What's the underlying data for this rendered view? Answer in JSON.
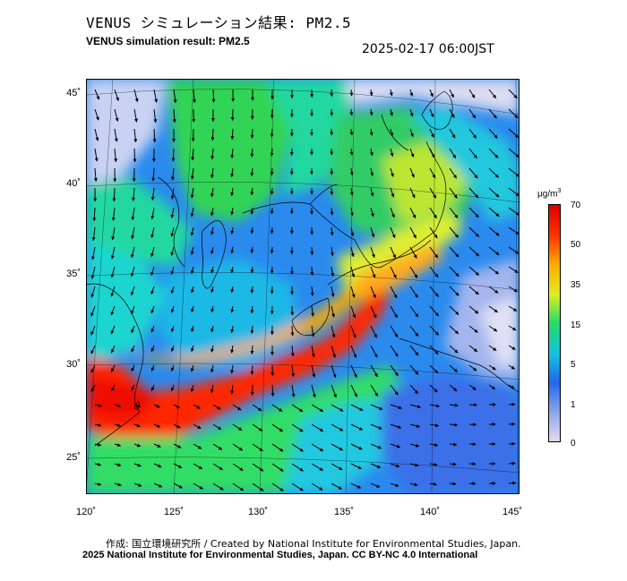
{
  "title_jp": "VENUS シミュレーション結果: PM2.5",
  "title_en": "VENUS simulation result: PM2.5",
  "timestamp": "2025-02-17 06:00JST",
  "latitude_labels": [
    "45˚",
    "40˚",
    "35˚",
    "30˚",
    "25˚"
  ],
  "longitude_labels": [
    "120˚",
    "125˚",
    "130˚",
    "135˚",
    "140˚",
    "145˚"
  ],
  "colorbar": {
    "unit_base": "μg/m",
    "unit_sup": "3",
    "ticks": [
      "70",
      "50",
      "35",
      "15",
      "5",
      "1",
      "0"
    ],
    "colors": [
      "#e8d8f0",
      "#8ea8e8",
      "#2266ee",
      "#11c4dd",
      "#22dd66",
      "#ddee22",
      "#ffaa00",
      "#ff3300",
      "#dd0000"
    ]
  },
  "credit_line1": "作成: 国立環境研究所 / Created by National Institute for Environmental Studies, Japan.",
  "credit_line2": "2025 National Institute for Environmental Studies, Japan. CC BY-NC 4.0 International"
}
